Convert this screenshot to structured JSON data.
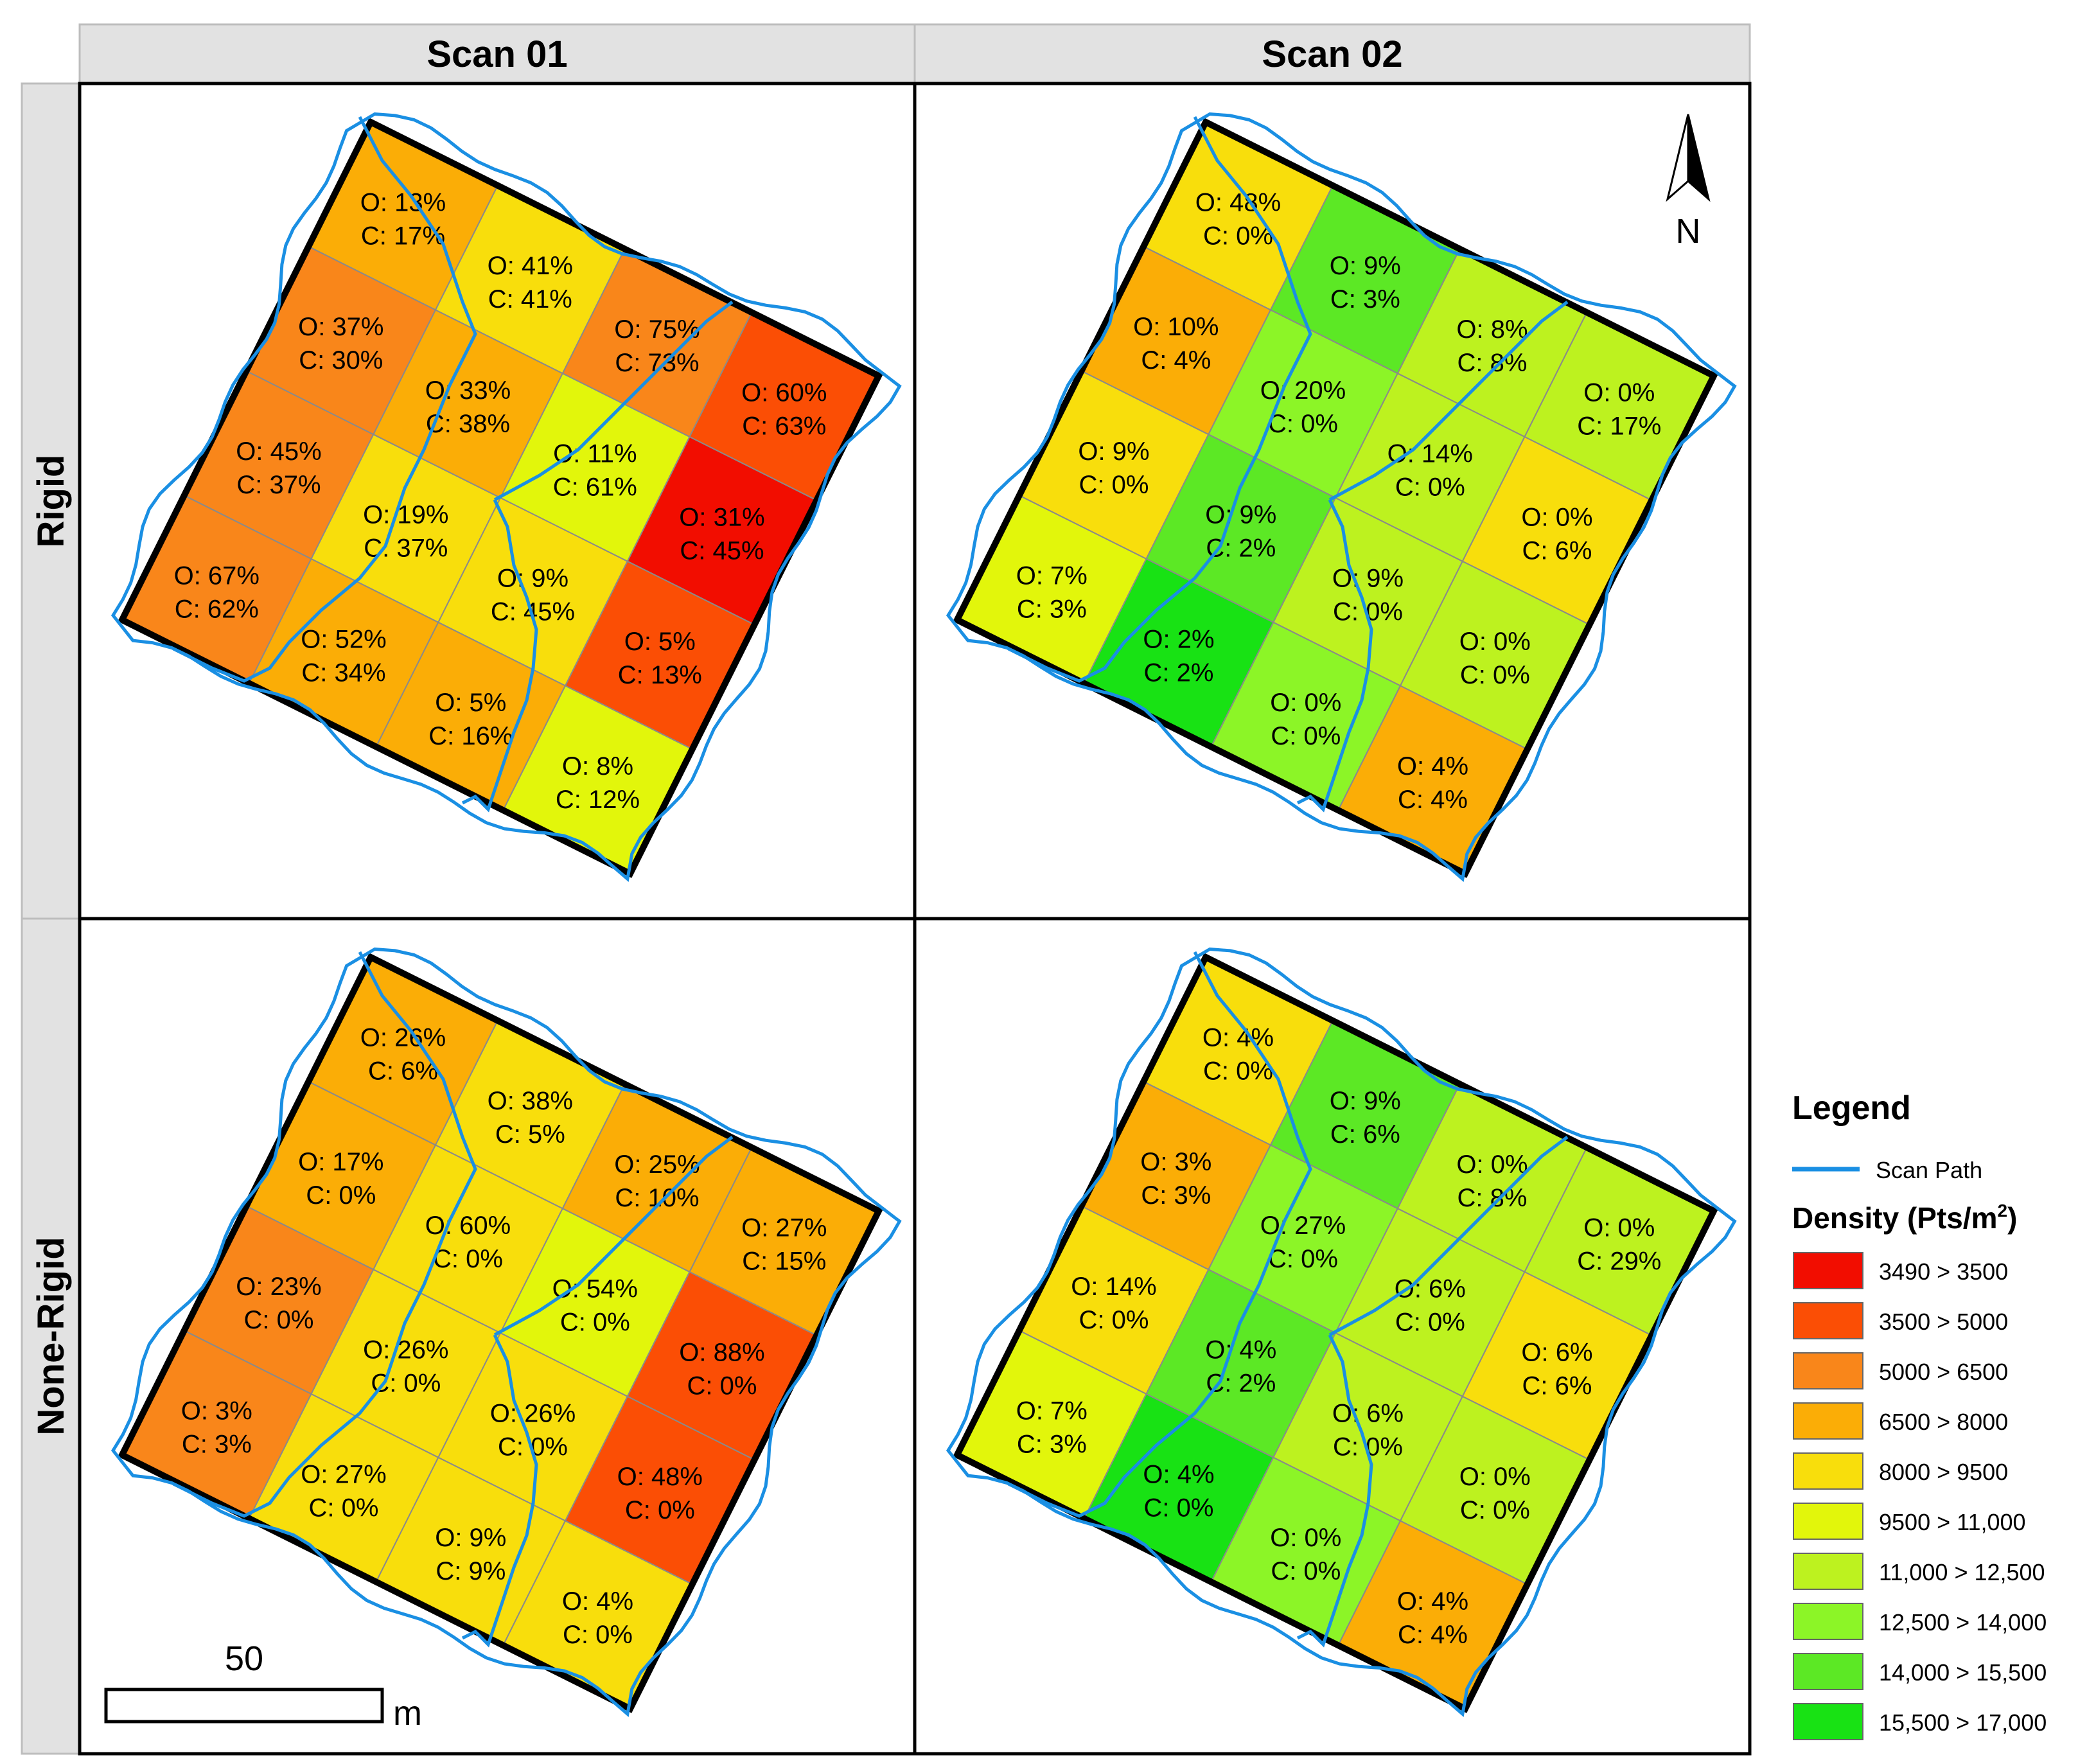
{
  "columns": [
    "Scan 01",
    "Scan 02"
  ],
  "rows": [
    "Rigid",
    "None-Rigid"
  ],
  "north_label": "N",
  "scale_bar": {
    "value": "50",
    "unit": "m"
  },
  "legend": {
    "title": "Legend",
    "path_label": "Scan Path",
    "path_color": "#1a8fe3",
    "density_title": "Density (Pts/m",
    "density_sup": "2",
    "density_close": ")",
    "classes": [
      {
        "label": "3490 > 3500",
        "color": "#f20d00"
      },
      {
        "label": "3500 > 5000",
        "color": "#fb4e05"
      },
      {
        "label": "5000 > 6500",
        "color": "#f9861a"
      },
      {
        "label": "6500 > 8000",
        "color": "#fbad06"
      },
      {
        "label": "8000 > 9500",
        "color": "#f8de0c"
      },
      {
        "label": "9500 > 11,000",
        "color": "#e2f60b"
      },
      {
        "label": "11,000 > 12,500",
        "color": "#bdf21f"
      },
      {
        "label": "12,500 > 14,000",
        "color": "#8cf527"
      },
      {
        "label": "14,000 > 15,500",
        "color": "#5ce825"
      },
      {
        "label": "15,500 > 17,000",
        "color": "#18e214"
      }
    ]
  },
  "panels": [
    {
      "id": "rigid-scan01",
      "cells": [
        {
          "o": "O: 13%",
          "c": "C: 17%",
          "d": 3
        },
        {
          "o": "O: 41%",
          "c": "C: 41%",
          "d": 4
        },
        {
          "o": "O: 75%",
          "c": "C: 73%",
          "d": 2
        },
        {
          "o": "O: 60%",
          "c": "C: 63%",
          "d": 1
        },
        {
          "o": "O: 37%",
          "c": "C: 30%",
          "d": 2
        },
        {
          "o": "O: 33%",
          "c": "C: 38%",
          "d": 3
        },
        {
          "o": "O: 11%",
          "c": "C: 61%",
          "d": 5
        },
        {
          "o": "O: 31%",
          "c": "C: 45%",
          "d": 0
        },
        {
          "o": "O: 45%",
          "c": "C: 37%",
          "d": 2
        },
        {
          "o": "O: 19%",
          "c": "C: 37%",
          "d": 4
        },
        {
          "o": "O: 9%",
          "c": "C: 45%",
          "d": 4
        },
        {
          "o": "O: 5%",
          "c": "C: 13%",
          "d": 1
        },
        {
          "o": "O: 67%",
          "c": "C: 62%",
          "d": 2
        },
        {
          "o": "O: 52%",
          "c": "C: 34%",
          "d": 3
        },
        {
          "o": "O: 5%",
          "c": "C: 16%",
          "d": 3
        },
        {
          "o": "O: 8%",
          "c": "C: 12%",
          "d": 5
        }
      ]
    },
    {
      "id": "rigid-scan02",
      "cells": [
        {
          "o": "O: 48%",
          "c": "C: 0%",
          "d": 4
        },
        {
          "o": "O: 9%",
          "c": "C: 3%",
          "d": 8
        },
        {
          "o": "O: 8%",
          "c": "C: 8%",
          "d": 6
        },
        {
          "o": "O: 0%",
          "c": "C: 17%",
          "d": 6
        },
        {
          "o": "O: 10%",
          "c": "C: 4%",
          "d": 3
        },
        {
          "o": "O: 20%",
          "c": "C: 0%",
          "d": 7
        },
        {
          "o": "O: 14%",
          "c": "C: 0%",
          "d": 6
        },
        {
          "o": "O: 0%",
          "c": "C: 6%",
          "d": 4
        },
        {
          "o": "O: 9%",
          "c": "C: 0%",
          "d": 4
        },
        {
          "o": "O: 9%",
          "c": "C: 2%",
          "d": 8
        },
        {
          "o": "O: 9%",
          "c": "C: 0%",
          "d": 6
        },
        {
          "o": "O: 0%",
          "c": "C: 0%",
          "d": 6
        },
        {
          "o": "O: 7%",
          "c": "C: 3%",
          "d": 5
        },
        {
          "o": "O: 2%",
          "c": "C: 2%",
          "d": 9
        },
        {
          "o": "O: 0%",
          "c": "C: 0%",
          "d": 7
        },
        {
          "o": "O: 4%",
          "c": "C: 4%",
          "d": 3
        }
      ]
    },
    {
      "id": "nonrigid-scan01",
      "cells": [
        {
          "o": "O: 26%",
          "c": "C: 6%",
          "d": 3
        },
        {
          "o": "O: 38%",
          "c": "C: 5%",
          "d": 4
        },
        {
          "o": "O: 25%",
          "c": "C: 10%",
          "d": 3
        },
        {
          "o": "O: 27%",
          "c": "C: 15%",
          "d": 3
        },
        {
          "o": "O: 17%",
          "c": "C: 0%",
          "d": 3
        },
        {
          "o": "O: 60%",
          "c": "C: 0%",
          "d": 4
        },
        {
          "o": "O: 54%",
          "c": "C: 0%",
          "d": 5
        },
        {
          "o": "O: 88%",
          "c": "C: 0%",
          "d": 1
        },
        {
          "o": "O: 23%",
          "c": "C: 0%",
          "d": 2
        },
        {
          "o": "O: 26%",
          "c": "C: 0%",
          "d": 4
        },
        {
          "o": "O: 26%",
          "c": "C: 0%",
          "d": 4
        },
        {
          "o": "O: 48%",
          "c": "C: 0%",
          "d": 1
        },
        {
          "o": "O: 3%",
          "c": "C: 3%",
          "d": 2
        },
        {
          "o": "O: 27%",
          "c": "C: 0%",
          "d": 4
        },
        {
          "o": "O: 9%",
          "c": "C: 9%",
          "d": 4
        },
        {
          "o": "O: 4%",
          "c": "C: 0%",
          "d": 4
        }
      ]
    },
    {
      "id": "nonrigid-scan02",
      "cells": [
        {
          "o": "O: 4%",
          "c": "C: 0%",
          "d": 4
        },
        {
          "o": "O: 9%",
          "c": "C: 6%",
          "d": 8
        },
        {
          "o": "O: 0%",
          "c": "C: 8%",
          "d": 6
        },
        {
          "o": "O: 0%",
          "c": "C: 29%",
          "d": 6
        },
        {
          "o": "O: 3%",
          "c": "C: 3%",
          "d": 3
        },
        {
          "o": "O: 27%",
          "c": "C: 0%",
          "d": 7
        },
        {
          "o": "O: 6%",
          "c": "C: 0%",
          "d": 6
        },
        {
          "o": "O: 6%",
          "c": "C: 6%",
          "d": 4
        },
        {
          "o": "O: 14%",
          "c": "C: 0%",
          "d": 4
        },
        {
          "o": "O: 4%",
          "c": "C: 2%",
          "d": 8
        },
        {
          "o": "O: 6%",
          "c": "C: 0%",
          "d": 6
        },
        {
          "o": "O: 0%",
          "c": "C: 0%",
          "d": 6
        },
        {
          "o": "O: 7%",
          "c": "C: 3%",
          "d": 5
        },
        {
          "o": "O: 4%",
          "c": "C: 0%",
          "d": 9
        },
        {
          "o": "O: 0%",
          "c": "C: 0%",
          "d": 7
        },
        {
          "o": "O: 4%",
          "c": "C: 4%",
          "d": 3
        }
      ]
    }
  ]
}
